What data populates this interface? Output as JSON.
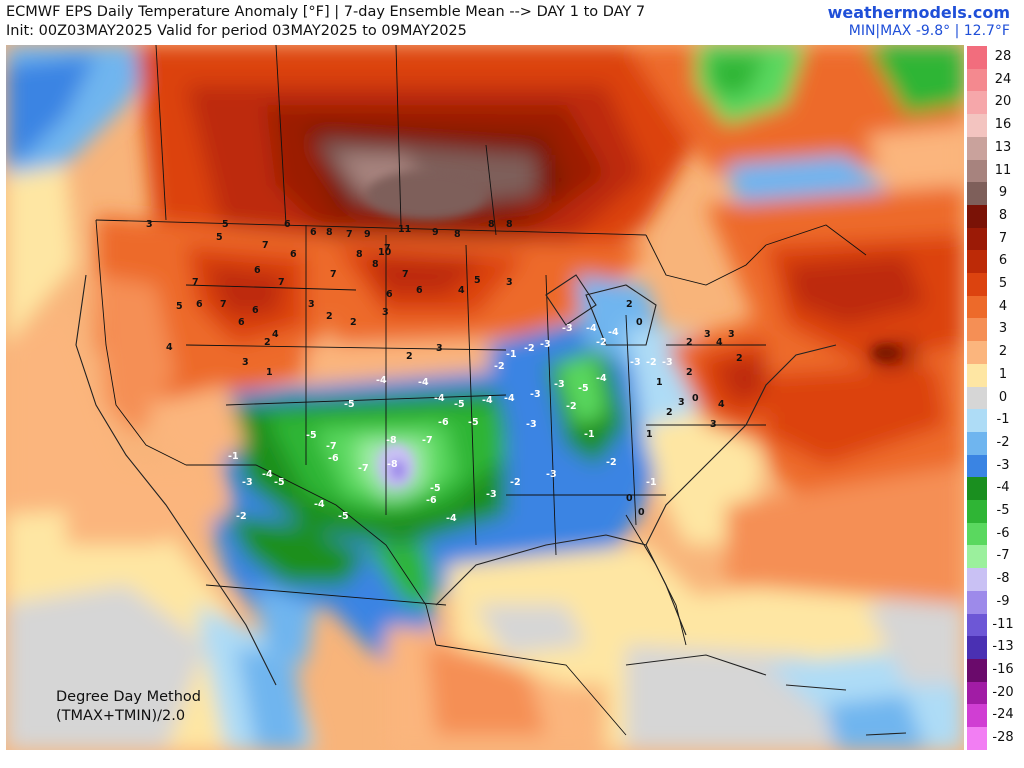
{
  "header": {
    "title": "ECMWF EPS Daily Temperature Anomaly [°F] | 7-day Ensemble Mean --> DAY 1 to DAY 7",
    "init": "Init: 00Z03MAY2025 Valid for period 03MAY2025 to 09MAY2025",
    "brand": "weathermodels.com",
    "minmax": "MIN|MAX -9.8° | 12.7°F"
  },
  "method": {
    "line1": "Degree Day Method",
    "line2": "(TMAX+TMIN)/2.0"
  },
  "legend": [
    {
      "label": "28",
      "color": "#f26d7d"
    },
    {
      "label": "24",
      "color": "#f4898f"
    },
    {
      "label": "20",
      "color": "#f6a7aa"
    },
    {
      "label": "16",
      "color": "#f3c4c0"
    },
    {
      "label": "13",
      "color": "#c9a29c"
    },
    {
      "label": "11",
      "color": "#a7837e"
    },
    {
      "label": "9",
      "color": "#7e5f5a"
    },
    {
      "label": "8",
      "color": "#7a1206"
    },
    {
      "label": "7",
      "color": "#9b1a06"
    },
    {
      "label": "6",
      "color": "#bd2a07"
    },
    {
      "label": "5",
      "color": "#dc430f"
    },
    {
      "label": "4",
      "color": "#ed6a2a"
    },
    {
      "label": "3",
      "color": "#f58f55"
    },
    {
      "label": "2",
      "color": "#fbb57d"
    },
    {
      "label": "1",
      "color": "#fee6a3"
    },
    {
      "label": "0",
      "color": "#d6d6d6"
    },
    {
      "label": "-1",
      "color": "#aedcf6"
    },
    {
      "label": "-2",
      "color": "#6fb5ef"
    },
    {
      "label": "-3",
      "color": "#3a84e3"
    },
    {
      "label": "-4",
      "color": "#1a8f1f"
    },
    {
      "label": "-5",
      "color": "#2fb535"
    },
    {
      "label": "-6",
      "color": "#5ad85f"
    },
    {
      "label": "-7",
      "color": "#9bf09d"
    },
    {
      "label": "-8",
      "color": "#c9c1f4"
    },
    {
      "label": "-9",
      "color": "#9d8aea"
    },
    {
      "label": "-11",
      "color": "#6d57d6"
    },
    {
      "label": "-13",
      "color": "#4a30b3"
    },
    {
      "label": "-16",
      "color": "#6a0a6b"
    },
    {
      "label": "-20",
      "color": "#a11ca5"
    },
    {
      "label": "-24",
      "color": "#d03ed3"
    },
    {
      "label": "-28",
      "color": "#f27ef3"
    }
  ],
  "labels": [
    {
      "t": "11"
    },
    {
      "t": "10"
    },
    {
      "t": "9"
    },
    {
      "t": "9"
    },
    {
      "t": "8"
    },
    {
      "t": "8"
    },
    {
      "t": "8"
    },
    {
      "t": "7"
    },
    {
      "t": "8"
    },
    {
      "t": "7"
    },
    {
      "t": "6"
    },
    {
      "t": "6"
    },
    {
      "t": "6"
    },
    {
      "t": "5"
    },
    {
      "t": "7"
    },
    {
      "t": "8"
    },
    {
      "t": "8"
    },
    {
      "t": "6"
    },
    {
      "t": "7"
    },
    {
      "t": "6"
    },
    {
      "t": "4"
    },
    {
      "t": "3"
    },
    {
      "t": "2"
    },
    {
      "t": "2"
    },
    {
      "t": "3"
    },
    {
      "t": "2"
    },
    {
      "t": "3"
    },
    {
      "t": "1"
    },
    {
      "t": "2"
    },
    {
      "t": "3"
    },
    {
      "t": "7"
    },
    {
      "t": "6"
    },
    {
      "t": "7"
    },
    {
      "t": "6"
    },
    {
      "t": "5"
    },
    {
      "t": "4"
    },
    {
      "t": "3"
    },
    {
      "t": "5"
    },
    {
      "t": "6"
    },
    {
      "t": "7"
    },
    {
      "t": "7"
    },
    {
      "t": "6"
    },
    {
      "t": "4"
    },
    {
      "t": "5"
    },
    {
      "t": "3"
    },
    {
      "t": "-8"
    },
    {
      "t": "-8"
    },
    {
      "t": "-7"
    },
    {
      "t": "-7"
    },
    {
      "t": "-6"
    },
    {
      "t": "-6"
    },
    {
      "t": "-7"
    },
    {
      "t": "-5"
    },
    {
      "t": "-5"
    },
    {
      "t": "-4"
    },
    {
      "t": "-4"
    },
    {
      "t": "-4"
    },
    {
      "t": "-5"
    },
    {
      "t": "-6"
    },
    {
      "t": "-5"
    },
    {
      "t": "-4"
    },
    {
      "t": "-4"
    },
    {
      "t": "-3"
    },
    {
      "t": "-3"
    },
    {
      "t": "-5"
    },
    {
      "t": "-4"
    },
    {
      "t": "-3"
    },
    {
      "t": "-2"
    },
    {
      "t": "-3"
    },
    {
      "t": "-2"
    },
    {
      "t": "-4"
    },
    {
      "t": "-4"
    },
    {
      "t": "-3"
    },
    {
      "t": "-3"
    },
    {
      "t": "-2"
    },
    {
      "t": "-1"
    },
    {
      "t": "-2"
    },
    {
      "t": "-3"
    },
    {
      "t": "-2"
    },
    {
      "t": "-1"
    },
    {
      "t": "0"
    },
    {
      "t": "0"
    },
    {
      "t": "-1"
    },
    {
      "t": "-2"
    },
    {
      "t": "1"
    },
    {
      "t": "2"
    },
    {
      "t": "3"
    },
    {
      "t": "0"
    },
    {
      "t": "1"
    },
    {
      "t": "2"
    },
    {
      "t": "0"
    },
    {
      "t": "2"
    },
    {
      "t": "-5"
    },
    {
      "t": "-4"
    },
    {
      "t": "-3"
    },
    {
      "t": "-2"
    },
    {
      "t": "-1"
    },
    {
      "t": "-4"
    },
    {
      "t": "-5"
    },
    {
      "t": "2"
    },
    {
      "t": "3"
    },
    {
      "t": "4"
    },
    {
      "t": "3"
    },
    {
      "t": "2"
    },
    {
      "t": "4"
    },
    {
      "t": "3"
    },
    {
      "t": "-4"
    },
    {
      "t": "-5"
    },
    {
      "t": "-3"
    },
    {
      "t": "-2"
    },
    {
      "t": "-3"
    }
  ]
}
